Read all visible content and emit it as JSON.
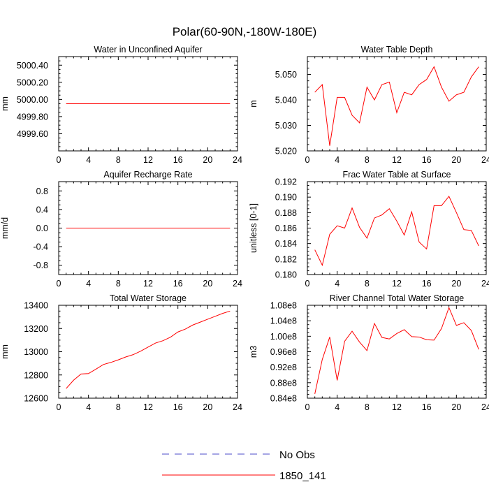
{
  "figure_title": "Polar(60-90N,-180W-180E)",
  "legend": {
    "items": [
      {
        "label": "No Obs",
        "style": "dashed",
        "color": "#4b4bc8"
      },
      {
        "label": "1850_141",
        "style": "solid",
        "color": "#ff0000"
      }
    ]
  },
  "chart_data": [
    {
      "type": "line",
      "title": "Water in Unconfined Aquifer",
      "xlabel": "",
      "ylabel": "mm",
      "xlim": [
        0,
        24
      ],
      "ylim": [
        4999.4,
        5000.5
      ],
      "xticks": [
        0,
        4,
        8,
        12,
        16,
        20,
        24
      ],
      "xticklabels": [
        "0",
        "4",
        "8",
        "12",
        "16",
        "20",
        "24"
      ],
      "yticks": [
        4999.6,
        4999.8,
        5000.0,
        5000.2,
        5000.4
      ],
      "yticklabels": [
        "4999.60",
        "4999.80",
        "5000.00",
        "5000.20",
        "5000.40"
      ],
      "series": [
        {
          "name": "1850_141",
          "color": "#ff0000",
          "x": [
            1,
            2,
            3,
            4,
            5,
            6,
            7,
            8,
            9,
            10,
            11,
            12,
            13,
            14,
            15,
            16,
            17,
            18,
            19,
            20,
            21,
            22,
            23
          ],
          "y": [
            4999.95,
            4999.95,
            4999.95,
            4999.95,
            4999.95,
            4999.95,
            4999.95,
            4999.95,
            4999.95,
            4999.95,
            4999.95,
            4999.95,
            4999.95,
            4999.95,
            4999.95,
            4999.95,
            4999.95,
            4999.95,
            4999.95,
            4999.95,
            4999.95,
            4999.95,
            4999.95
          ]
        }
      ]
    },
    {
      "type": "line",
      "title": "Water Table Depth",
      "xlabel": "",
      "ylabel": "m",
      "xlim": [
        0,
        24
      ],
      "ylim": [
        5.02,
        5.057
      ],
      "xticks": [
        0,
        4,
        8,
        12,
        16,
        20,
        24
      ],
      "xticklabels": [
        "0",
        "4",
        "8",
        "12",
        "16",
        "20",
        "24"
      ],
      "yticks": [
        5.02,
        5.03,
        5.04,
        5.05
      ],
      "yticklabels": [
        "5.020",
        "5.030",
        "5.040",
        "5.050"
      ],
      "series": [
        {
          "name": "1850_141",
          "color": "#ff0000",
          "x": [
            1,
            2,
            3,
            4,
            5,
            6,
            7,
            8,
            9,
            10,
            11,
            12,
            13,
            14,
            15,
            16,
            17,
            18,
            19,
            20,
            21,
            22,
            23
          ],
          "y": [
            5.043,
            5.046,
            5.022,
            5.041,
            5.041,
            5.034,
            5.031,
            5.045,
            5.04,
            5.046,
            5.047,
            5.035,
            5.043,
            5.042,
            5.046,
            5.048,
            5.053,
            5.045,
            5.0395,
            5.042,
            5.043,
            5.049,
            5.053
          ]
        }
      ]
    },
    {
      "type": "line",
      "title": "Aquifer Recharge Rate",
      "xlabel": "",
      "ylabel": "mm/d",
      "xlim": [
        0,
        24
      ],
      "ylim": [
        -1.0,
        1.0
      ],
      "xticks": [
        0,
        4,
        8,
        12,
        16,
        20,
        24
      ],
      "xticklabels": [
        "0",
        "4",
        "8",
        "12",
        "16",
        "20",
        "24"
      ],
      "yticks": [
        -0.8,
        -0.4,
        0.0,
        0.4,
        0.8
      ],
      "yticklabels": [
        "-0.8",
        "-0.4",
        "0.0",
        "0.4",
        "0.8"
      ],
      "series": [
        {
          "name": "1850_141",
          "color": "#ff0000",
          "x": [
            1,
            2,
            3,
            4,
            5,
            6,
            7,
            8,
            9,
            10,
            11,
            12,
            13,
            14,
            15,
            16,
            17,
            18,
            19,
            20,
            21,
            22,
            23
          ],
          "y": [
            0,
            0,
            0,
            0,
            0,
            0,
            0,
            0,
            0,
            0,
            0,
            0,
            0,
            0,
            0,
            0,
            0,
            0,
            0,
            0,
            0,
            0,
            0
          ]
        }
      ]
    },
    {
      "type": "line",
      "title": "Frac Water Table at Surface",
      "xlabel": "",
      "ylabel": "unitless [0-1]",
      "xlim": [
        0,
        24
      ],
      "ylim": [
        0.18,
        0.192
      ],
      "xticks": [
        0,
        4,
        8,
        12,
        16,
        20,
        24
      ],
      "xticklabels": [
        "0",
        "4",
        "8",
        "12",
        "16",
        "20",
        "24"
      ],
      "yticks": [
        0.18,
        0.182,
        0.184,
        0.186,
        0.188,
        0.19,
        0.192
      ],
      "yticklabels": [
        "0.180",
        "0.182",
        "0.184",
        "0.186",
        "0.188",
        "0.190",
        "0.192"
      ],
      "series": [
        {
          "name": "1850_141",
          "color": "#ff0000",
          "x": [
            1,
            2,
            3,
            4,
            5,
            6,
            7,
            8,
            9,
            10,
            11,
            12,
            13,
            14,
            15,
            16,
            17,
            18,
            19,
            20,
            21,
            22,
            23
          ],
          "y": [
            0.1832,
            0.1812,
            0.1852,
            0.1863,
            0.186,
            0.1886,
            0.1861,
            0.1847,
            0.1873,
            0.1877,
            0.1885,
            0.1869,
            0.1851,
            0.1881,
            0.1842,
            0.1833,
            0.1889,
            0.1889,
            0.1901,
            0.188,
            0.1858,
            0.1857,
            0.1837
          ]
        }
      ]
    },
    {
      "type": "line",
      "title": "Total Water Storage",
      "xlabel": "",
      "ylabel": "mm",
      "xlim": [
        0,
        24
      ],
      "ylim": [
        12600,
        13400
      ],
      "xticks": [
        0,
        4,
        8,
        12,
        16,
        20,
        24
      ],
      "xticklabels": [
        "0",
        "4",
        "8",
        "12",
        "16",
        "20",
        "24"
      ],
      "yticks": [
        12600,
        12800,
        13000,
        13200,
        13400
      ],
      "yticklabels": [
        "12600",
        "12800",
        "13000",
        "13200",
        "13400"
      ],
      "series": [
        {
          "name": "1850_141",
          "color": "#ff0000",
          "x": [
            1,
            2,
            3,
            4,
            5,
            6,
            7,
            8,
            9,
            10,
            11,
            12,
            13,
            14,
            15,
            16,
            17,
            18,
            19,
            20,
            21,
            22,
            23
          ],
          "y": [
            12683,
            12755,
            12808,
            12812,
            12850,
            12890,
            12908,
            12930,
            12955,
            12975,
            13005,
            13040,
            13075,
            13095,
            13125,
            13170,
            13195,
            13230,
            13255,
            13280,
            13305,
            13330,
            13350
          ]
        }
      ]
    },
    {
      "type": "line",
      "title": "River Channel Total Water Storage",
      "xlabel": "",
      "ylabel": "m3",
      "xlim": [
        0,
        24
      ],
      "ylim": [
        84000000.0,
        108000000.0
      ],
      "xticks": [
        0,
        4,
        8,
        12,
        16,
        20,
        24
      ],
      "xticklabels": [
        "0",
        "4",
        "8",
        "12",
        "16",
        "20",
        "24"
      ],
      "yticks": [
        84000000.0,
        88000000.0,
        92000000.0,
        96000000.0,
        100000000.0,
        104000000.0,
        108000000.0
      ],
      "yticklabels": [
        "0.84e8",
        "0.88e8",
        "0.92e8",
        "0.96e8",
        "1.00e8",
        "1.04e8",
        "1.08e8"
      ],
      "series": [
        {
          "name": "1850_141",
          "color": "#ff0000",
          "x": [
            1,
            2,
            3,
            4,
            5,
            6,
            7,
            8,
            9,
            10,
            11,
            12,
            13,
            14,
            15,
            16,
            17,
            18,
            19,
            20,
            21,
            22,
            23
          ],
          "y": [
            85100000.0,
            94000000.0,
            99800000.0,
            88600000.0,
            98700000.0,
            101300000.0,
            98500000.0,
            96300000.0,
            103300000.0,
            99700000.0,
            99300000.0,
            100700000.0,
            101700000.0,
            99900000.0,
            99800000.0,
            99100000.0,
            99000000.0,
            102000000.0,
            107400000.0,
            102800000.0,
            103500000.0,
            101500000.0,
            96600000.0
          ]
        }
      ]
    }
  ]
}
